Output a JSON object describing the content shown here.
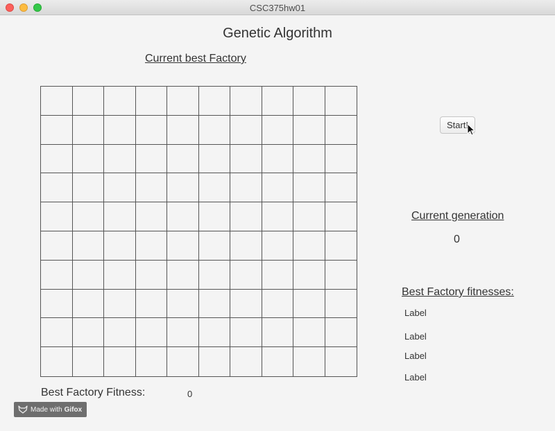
{
  "window": {
    "title": "CSC375hw01"
  },
  "app": {
    "title": "Genetic Algorithm"
  },
  "grid": {
    "heading": "Current best Factory",
    "rows": 10,
    "cols": 10
  },
  "controls": {
    "start_label": "Start!"
  },
  "generation": {
    "heading": "Current generation",
    "value": "0"
  },
  "fitnesses": {
    "heading": "Best Factory fitnesses:",
    "labels": [
      "Label",
      "Label",
      "Label",
      "Label"
    ]
  },
  "best_fitness": {
    "label": "Best Factory Fitness:",
    "value": "0"
  },
  "watermark": {
    "prefix": "Made with",
    "brand": "Gifox"
  },
  "colors": {
    "close": "#fc605c",
    "minimize": "#fdbc40",
    "maximize": "#34c84a",
    "grid_line": "#555555",
    "background": "#f4f4f4"
  }
}
